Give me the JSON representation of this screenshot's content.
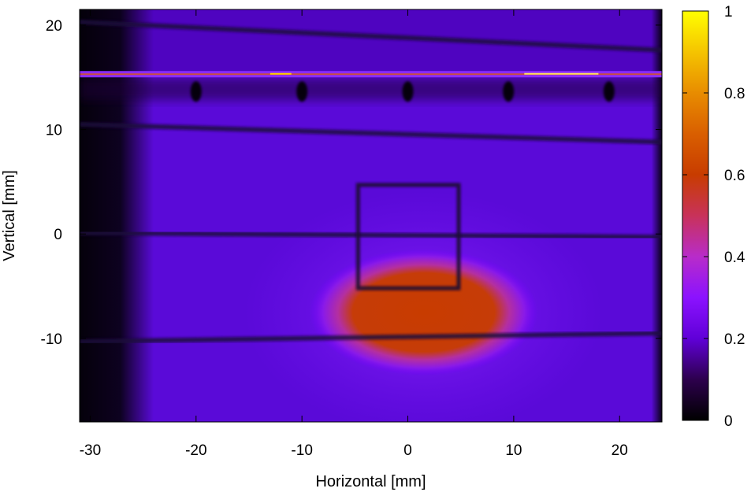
{
  "chart_data": {
    "type": "heatmap",
    "title": "",
    "xlabel": "Horizontal [mm]",
    "ylabel": "Vertical [mm]",
    "xlim": [
      -31,
      24
    ],
    "ylim": [
      -18,
      21.5
    ],
    "x_ticks": [
      {
        "value": -30,
        "label": "-30"
      },
      {
        "value": -20,
        "label": "-20"
      },
      {
        "value": -10,
        "label": "-10"
      },
      {
        "value": 0,
        "label": "0"
      },
      {
        "value": 10,
        "label": "10"
      },
      {
        "value": 20,
        "label": "20"
      }
    ],
    "y_ticks": [
      {
        "value": 20,
        "label": "20"
      },
      {
        "value": 10,
        "label": "10"
      },
      {
        "value": 0,
        "label": "0"
      },
      {
        "value": -10,
        "label": "-10"
      }
    ],
    "colorbar": {
      "range": [
        0,
        1
      ],
      "ticks": [
        {
          "value": 0,
          "label": "0"
        },
        {
          "value": 0.2,
          "label": "0.2"
        },
        {
          "value": 0.4,
          "label": "0.4"
        },
        {
          "value": 0.6,
          "label": "0.6"
        },
        {
          "value": 0.8,
          "label": "0.8"
        },
        {
          "value": 1,
          "label": "1"
        }
      ],
      "palette": [
        "#000000",
        "#40006e",
        "#8000ff",
        "#d2328c",
        "#c83c00",
        "#e68c00",
        "#ffff00"
      ]
    },
    "image_features": {
      "background_intensity": 0.2,
      "dark_left_band_x": [
        -31,
        -24
      ],
      "dark_right_band_x": [
        23,
        24
      ],
      "hot_spot": {
        "x_center": 1.5,
        "y_center": -7.5,
        "x_halfwidth": 9,
        "y_halfwidth": 4.5,
        "intensity": 0.55
      },
      "bright_horizontal_line_y": 15.3,
      "vertical_grid_wires_x": [
        -20,
        -10,
        0,
        9.5,
        19
      ],
      "horizontal_grid_wires": [
        {
          "x1": -31,
          "y1": 20.3,
          "x2": 24,
          "y2": 17.6
        },
        {
          "x1": -31,
          "y1": 10.5,
          "x2": 24,
          "y2": 8.8
        },
        {
          "x1": -31,
          "y1": 0.1,
          "x2": 24,
          "y2": -0.3
        },
        {
          "x1": -31,
          "y1": -10.3,
          "x2": 24,
          "y2": -9.5
        }
      ],
      "square_frame": {
        "x1": -4.7,
        "x2": 4.8,
        "y1": -5.2,
        "y2": 4.7
      }
    }
  }
}
